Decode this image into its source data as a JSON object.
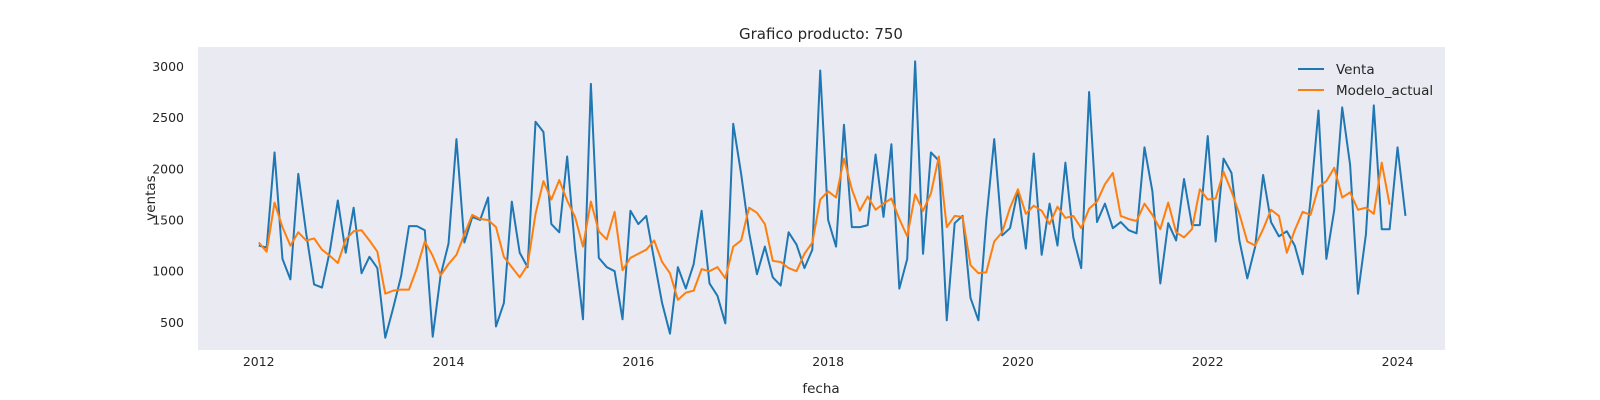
{
  "chart_data": {
    "type": "line",
    "title": "Grafico producto: 750",
    "xlabel": "fecha",
    "ylabel": "ventas",
    "xlim": [
      2011.36,
      2024.5
    ],
    "ylim": [
      230,
      3190
    ],
    "xticks": [
      2012,
      2014,
      2016,
      2018,
      2020,
      2022,
      2024
    ],
    "yticks": [
      500,
      1000,
      1500,
      2000,
      2500,
      3000
    ],
    "grid": false,
    "legend": "top-right",
    "colors": {
      "background": "#eaeaf2",
      "venta": "#1f77b4",
      "modelo": "#ff7f0e"
    },
    "x_start": 2012,
    "x_step_months": 1,
    "series": [
      {
        "name": "Venta",
        "color": "#1f77b4",
        "values": [
          1250,
          1230,
          2160,
          1120,
          920,
          1950,
          1370,
          870,
          840,
          1200,
          1690,
          1180,
          1620,
          980,
          1140,
          1030,
          350,
          640,
          950,
          1440,
          1440,
          1400,
          360,
          960,
          1270,
          2290,
          1280,
          1530,
          1500,
          1720,
          460,
          690,
          1680,
          1180,
          1040,
          2460,
          2360,
          1460,
          1380,
          2120,
          1220,
          530,
          2830,
          1130,
          1040,
          1000,
          530,
          1590,
          1460,
          1540,
          1110,
          690,
          390,
          1040,
          830,
          1070,
          1590,
          880,
          760,
          490,
          2440,
          1950,
          1380,
          970,
          1240,
          940,
          860,
          1380,
          1260,
          1030,
          1210,
          2960,
          1500,
          1240,
          2430,
          1430,
          1430,
          1450,
          2140,
          1530,
          2240,
          830,
          1120,
          3050,
          1170,
          2160,
          2080,
          520,
          1470,
          1540,
          740,
          520,
          1500,
          2290,
          1350,
          1420,
          1790,
          1220,
          2150,
          1160,
          1660,
          1250,
          2060,
          1330,
          1030,
          2750,
          1480,
          1660,
          1420,
          1480,
          1400,
          1370,
          2210,
          1780,
          880,
          1470,
          1300,
          1900,
          1450,
          1450,
          2320,
          1290,
          2100,
          1960,
          1300,
          930,
          1240,
          1940,
          1480,
          1340,
          1390,
          1250,
          970,
          1700,
          2570,
          1120,
          1600,
          2600,
          2040,
          780,
          1360,
          2620,
          1410,
          1410,
          2210,
          1540
        ]
      },
      {
        "name": "Modelo_actual",
        "color": "#ff7f0e",
        "values": [
          1280,
          1190,
          1670,
          1430,
          1250,
          1380,
          1300,
          1320,
          1210,
          1150,
          1080,
          1310,
          1390,
          1400,
          1300,
          1190,
          780,
          810,
          820,
          820,
          1030,
          1290,
          1150,
          960,
          1070,
          1160,
          1360,
          1550,
          1510,
          1500,
          1430,
          1140,
          1040,
          940,
          1060,
          1560,
          1880,
          1700,
          1890,
          1690,
          1530,
          1240,
          1680,
          1390,
          1310,
          1580,
          1010,
          1130,
          1170,
          1210,
          1300,
          1090,
          980,
          720,
          790,
          810,
          1020,
          1000,
          1040,
          930,
          1240,
          1300,
          1620,
          1570,
          1460,
          1100,
          1090,
          1030,
          1000,
          1170,
          1280,
          1700,
          1780,
          1720,
          2100,
          1800,
          1590,
          1730,
          1600,
          1660,
          1710,
          1510,
          1340,
          1750,
          1590,
          1760,
          2120,
          1430,
          1540,
          1530,
          1060,
          980,
          990,
          1290,
          1380,
          1620,
          1800,
          1560,
          1640,
          1590,
          1460,
          1630,
          1520,
          1540,
          1420,
          1610,
          1680,
          1850,
          1960,
          1540,
          1510,
          1490,
          1660,
          1550,
          1410,
          1670,
          1380,
          1330,
          1410,
          1800,
          1700,
          1710,
          1970,
          1780,
          1560,
          1290,
          1250,
          1410,
          1600,
          1540,
          1180,
          1400,
          1580,
          1550,
          1820,
          1880,
          2010,
          1720,
          1770,
          1600,
          1620,
          1560,
          2060,
          1650
        ]
      }
    ]
  }
}
